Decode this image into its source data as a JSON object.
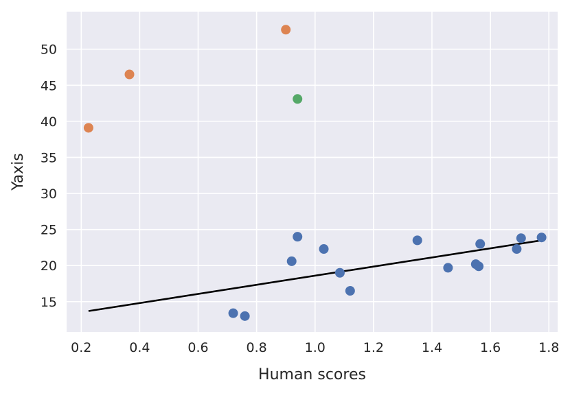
{
  "chart_data": {
    "type": "scatter",
    "xlabel": "Human scores",
    "ylabel": "Yaxis",
    "xlim": [
      0.15,
      1.83
    ],
    "ylim": [
      10.8,
      55.2
    ],
    "xticks": [
      0.2,
      0.4,
      0.6,
      0.8,
      1.0,
      1.2,
      1.4,
      1.6,
      1.8
    ],
    "xtick_labels": [
      "0.2",
      "0.4",
      "0.6",
      "0.8",
      "1.0",
      "1.2",
      "1.4",
      "1.6",
      "1.8"
    ],
    "yticks": [
      15,
      20,
      25,
      30,
      35,
      40,
      45,
      50
    ],
    "ytick_labels": [
      "15",
      "20",
      "25",
      "30",
      "35",
      "40",
      "45",
      "50"
    ],
    "grid": true,
    "colors": {
      "background": "#eaeaf2",
      "grid": "#ffffff",
      "trendline": "#000000"
    },
    "series": [
      {
        "color": "#4c72b0",
        "points": [
          {
            "x": 0.72,
            "y": 13.4
          },
          {
            "x": 0.76,
            "y": 13.0
          },
          {
            "x": 0.92,
            "y": 20.6
          },
          {
            "x": 0.94,
            "y": 24.0
          },
          {
            "x": 1.03,
            "y": 22.3
          },
          {
            "x": 1.085,
            "y": 19.0
          },
          {
            "x": 1.12,
            "y": 16.5
          },
          {
            "x": 1.35,
            "y": 23.5
          },
          {
            "x": 1.455,
            "y": 19.7
          },
          {
            "x": 1.55,
            "y": 20.2
          },
          {
            "x": 1.56,
            "y": 19.9
          },
          {
            "x": 1.565,
            "y": 23.0
          },
          {
            "x": 1.69,
            "y": 22.3
          },
          {
            "x": 1.705,
            "y": 23.8
          },
          {
            "x": 1.775,
            "y": 23.9
          }
        ]
      },
      {
        "color": "#dd8452",
        "points": [
          {
            "x": 0.225,
            "y": 39.1
          },
          {
            "x": 0.365,
            "y": 46.5
          },
          {
            "x": 0.9,
            "y": 52.7
          }
        ]
      },
      {
        "color": "#55a868",
        "points": [
          {
            "x": 0.94,
            "y": 43.1
          }
        ]
      }
    ],
    "trendline": {
      "x": [
        0.225,
        1.775
      ],
      "y": [
        13.7,
        23.5
      ]
    }
  }
}
